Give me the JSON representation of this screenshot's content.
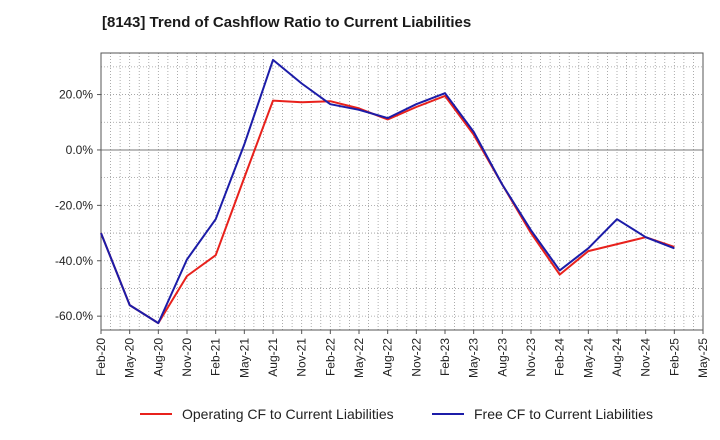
{
  "chart_data": {
    "type": "line",
    "title": "[8143]  Trend of Cashflow Ratio to Current Liabilities",
    "xlabel": "",
    "ylabel": "",
    "x": [
      "Feb-20",
      "May-20",
      "Aug-20",
      "Nov-20",
      "Feb-21",
      "May-21",
      "Aug-21",
      "Nov-21",
      "Feb-22",
      "May-22",
      "Aug-22",
      "Nov-22",
      "Feb-23",
      "May-23",
      "Aug-23",
      "Nov-23",
      "Feb-24",
      "May-24",
      "Aug-24",
      "Nov-24",
      "Feb-25",
      "May-25"
    ],
    "y_ticks": [
      "20.0%",
      "0.0%",
      "-20.0%",
      "-40.0%",
      "-60.0%"
    ],
    "ylim": [
      -65,
      35
    ],
    "grid": true,
    "legend_position": "bottom",
    "series": [
      {
        "name": "Operating CF to Current Liabilities",
        "color": "#e8211c",
        "values": [
          -30.0,
          -56.0,
          -62.5,
          -45.5,
          -38.0,
          -10.0,
          17.8,
          17.2,
          17.6,
          15.0,
          11.0,
          15.5,
          19.5,
          5.5,
          -12.5,
          -30.0,
          -45.0,
          -36.5,
          null,
          -31.5,
          -35.0,
          null
        ]
      },
      {
        "name": "Free CF to Current Liabilities",
        "color": "#1c1ca8",
        "values": [
          -30.0,
          -56.0,
          -62.5,
          -39.5,
          -25.0,
          2.0,
          32.5,
          24.0,
          16.5,
          14.5,
          11.5,
          16.5,
          20.5,
          6.5,
          -12.5,
          -29.0,
          -43.5,
          -35.5,
          -25.0,
          -31.5,
          -35.5,
          null
        ]
      }
    ]
  }
}
